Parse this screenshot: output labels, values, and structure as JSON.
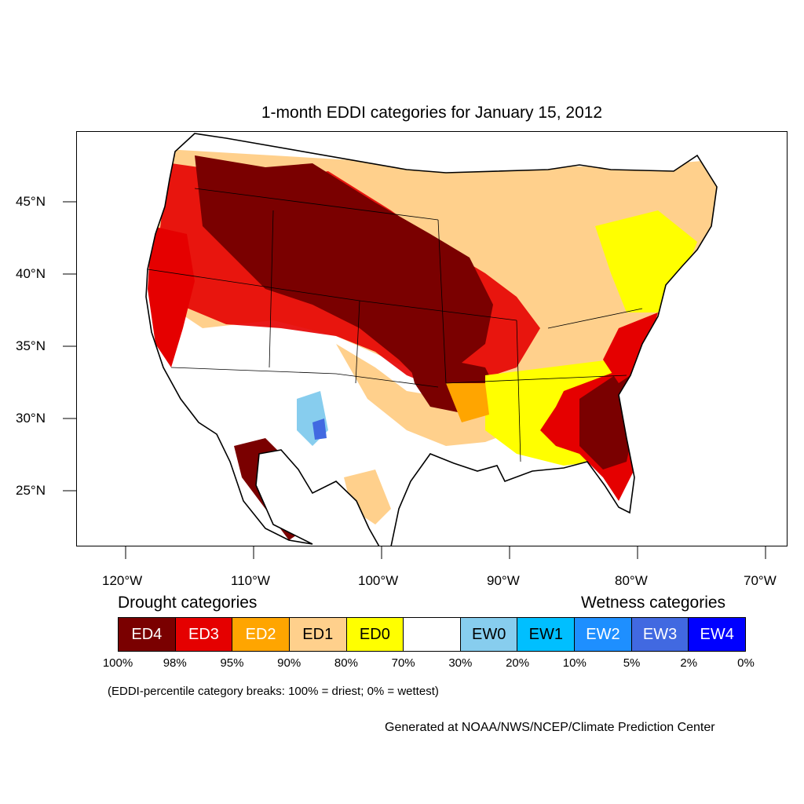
{
  "title": "1-month EDDI categories for January 15, 2012",
  "colors": {
    "ED4": "#7a0000",
    "ED3": "#e50000",
    "ED2": "#ffa500",
    "ED1": "#ffd08c",
    "ED0": "#ffff00",
    "neutral": "#ffffff",
    "EW0": "#87cdee",
    "EW1": "#00bfff",
    "EW2": "#1e8fff",
    "EW3": "#4169e1",
    "EW4": "#0000ff"
  },
  "y_axis": {
    "labels": [
      "45°N",
      "40°N",
      "35°N",
      "30°N",
      "25°N"
    ]
  },
  "x_axis": {
    "labels": [
      "120°W",
      "110°W",
      "100°W",
      "90°W",
      "80°W",
      "70°W"
    ]
  },
  "legend": {
    "drought_title": "Drought categories",
    "wetness_title": "Wetness categories",
    "categories": [
      {
        "label": "ED4",
        "color_key": "ED4",
        "text_color": "#ffffff"
      },
      {
        "label": "ED3",
        "color_key": "ED3",
        "text_color": "#ffffff"
      },
      {
        "label": "ED2",
        "color_key": "ED2",
        "text_color": "#ffffff"
      },
      {
        "label": "ED1",
        "color_key": "ED1",
        "text_color": "#000000"
      },
      {
        "label": "ED0",
        "color_key": "ED0",
        "text_color": "#000000"
      },
      {
        "label": "",
        "color_key": "neutral",
        "text_color": "#000000"
      },
      {
        "label": "EW0",
        "color_key": "EW0",
        "text_color": "#000000"
      },
      {
        "label": "EW1",
        "color_key": "EW1",
        "text_color": "#000000"
      },
      {
        "label": "EW2",
        "color_key": "EW2",
        "text_color": "#ffffff"
      },
      {
        "label": "EW3",
        "color_key": "EW3",
        "text_color": "#ffffff"
      },
      {
        "label": "EW4",
        "color_key": "EW4",
        "text_color": "#ffffff"
      }
    ],
    "breaks": [
      "100%",
      "98%",
      "95%",
      "90%",
      "80%",
      "70%",
      "30%",
      "20%",
      "10%",
      "5%",
      "2%",
      "0%"
    ]
  },
  "note": "(EDDI-percentile category breaks: 100% = driest; 0% = wettest)",
  "credit": "Generated at NOAA/NWS/NCEP/Climate Prediction Center"
}
